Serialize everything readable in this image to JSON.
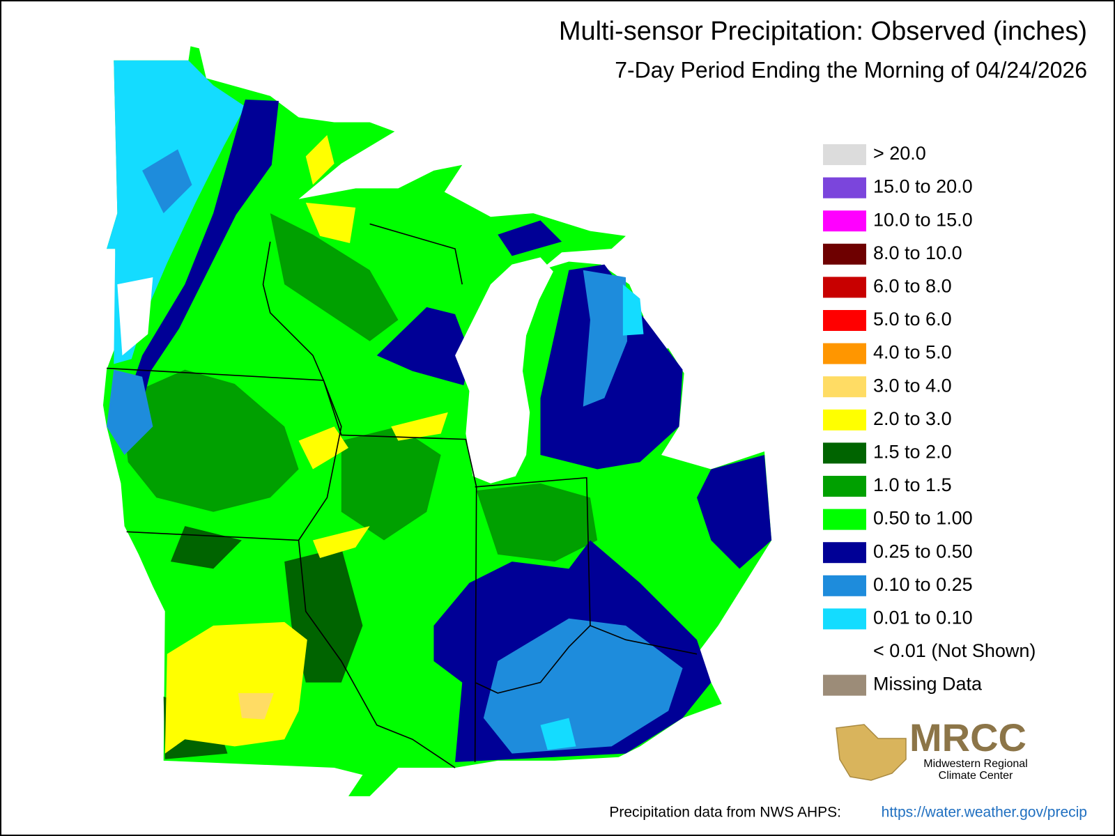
{
  "header": {
    "title": "Multi-sensor Precipitation: Observed (inches)",
    "subtitle": "7-Day Period Ending the Morning of 04/24/2026"
  },
  "legend": {
    "items": [
      {
        "label": "> 20.0",
        "color": "#dcdcdc"
      },
      {
        "label": "15.0 to 20.0",
        "color": "#7b45dc"
      },
      {
        "label": "10.0 to 15.0",
        "color": "#ff00ff"
      },
      {
        "label": "8.0 to 10.0",
        "color": "#6e0000"
      },
      {
        "label": "6.0 to 8.0",
        "color": "#c80000"
      },
      {
        "label": "5.0 to 6.0",
        "color": "#ff0000"
      },
      {
        "label": "4.0 to 5.0",
        "color": "#ff9600"
      },
      {
        "label": "3.0 to 4.0",
        "color": "#ffdc64"
      },
      {
        "label": "2.0 to 3.0",
        "color": "#ffff00"
      },
      {
        "label": "1.5 to 2.0",
        "color": "#006400"
      },
      {
        "label": "1.0 to 1.5",
        "color": "#00a000"
      },
      {
        "label": "0.50 to 1.00",
        "color": "#00ff00"
      },
      {
        "label": "0.25 to 0.50",
        "color": "#000096"
      },
      {
        "label": "0.10 to 0.25",
        "color": "#1e8cdc"
      },
      {
        "label": "0.01 to 0.10",
        "color": "#14dcff"
      },
      {
        "label": "< 0.01 (Not Shown)"
      },
      {
        "label": "Missing Data",
        "color": "#9c8c78"
      }
    ]
  },
  "logo": {
    "name": "MRCC",
    "line1": "Midwestern Regional",
    "line2": "Climate Center"
  },
  "footer": {
    "text": "Precipitation data from NWS AHPS:",
    "link": "https://water.weather.gov/precip"
  }
}
